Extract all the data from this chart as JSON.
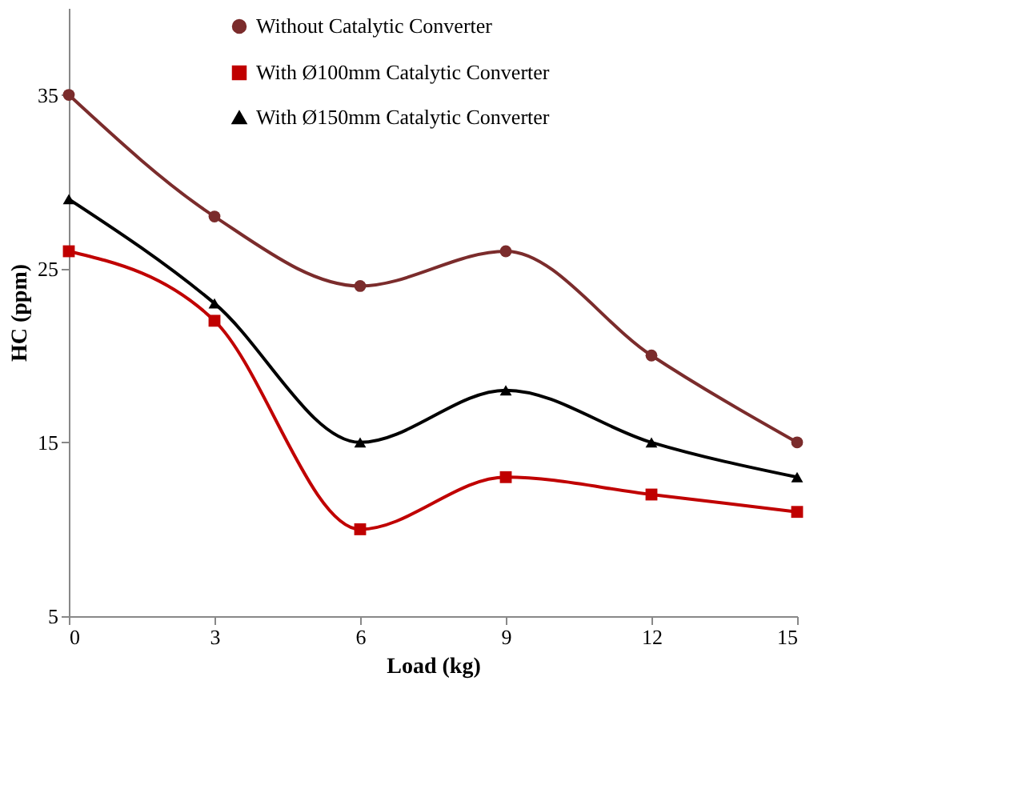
{
  "chart_data": {
    "type": "line",
    "xlabel": "Load (kg)",
    "ylabel": "HC (ppm)",
    "x": [
      0,
      3,
      6,
      9,
      12,
      15
    ],
    "series": [
      {
        "name": "Without Catalytic Converter",
        "color": "#7b2c2c",
        "marker": "circle",
        "values": [
          35,
          28,
          24,
          26,
          20,
          15
        ]
      },
      {
        "name": "With Ø100mm Catalytic Converter",
        "color": "#c00000",
        "marker": "square",
        "values": [
          26,
          22,
          10,
          13,
          12,
          11
        ]
      },
      {
        "name": "With Ø150mm Catalytic Converter",
        "color": "#000000",
        "marker": "triangle",
        "values": [
          29,
          23,
          15,
          18,
          15,
          13
        ]
      }
    ],
    "xlim": [
      0,
      15
    ],
    "xticks": [
      0,
      3,
      6,
      9,
      12,
      15
    ],
    "ylim": [
      5,
      40
    ],
    "yticks": [
      5,
      15,
      25,
      35
    ],
    "grid": false,
    "legend": "top",
    "line_style": "solid"
  }
}
